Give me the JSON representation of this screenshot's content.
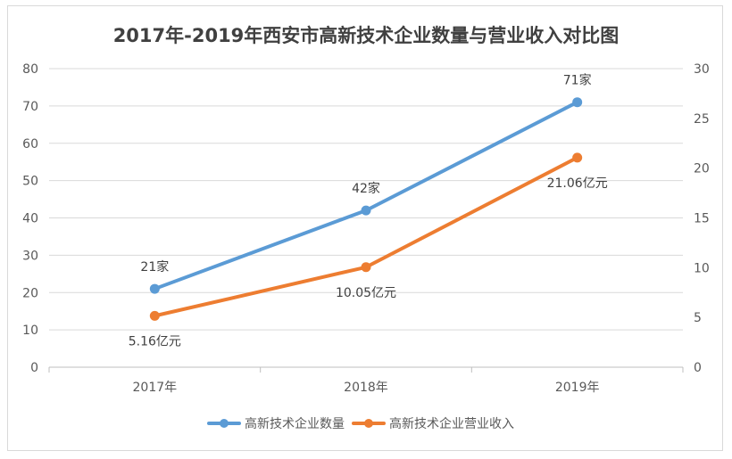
{
  "chart_data": {
    "type": "line",
    "title": "2017年-2019年西安市高新技术企业数量与营业收入对比图",
    "categories": [
      "2017年",
      "2018年",
      "2019年"
    ],
    "y_left": {
      "min": 0,
      "max": 80,
      "step": 10,
      "ticks": [
        "0",
        "10",
        "20",
        "30",
        "40",
        "50",
        "60",
        "70",
        "80"
      ]
    },
    "y_right": {
      "min": 0,
      "max": 30,
      "step": 5,
      "ticks": [
        "0",
        "5",
        "10",
        "15",
        "20",
        "25",
        "30"
      ]
    },
    "grid": true,
    "legend_position": "bottom",
    "series": [
      {
        "name": "高新技术企业数量",
        "axis": "left",
        "color": "#5b9bd5",
        "values": [
          21,
          42,
          71
        ],
        "labels": [
          "21家",
          "42家",
          "71家"
        ],
        "label_position": "above"
      },
      {
        "name": "高新技术企业营业收入",
        "axis": "right",
        "color": "#ed7d31",
        "values": [
          5.16,
          10.05,
          21.06
        ],
        "labels": [
          "5.16亿元",
          "10.05亿元",
          "21.06亿元"
        ],
        "label_position": "below"
      }
    ]
  }
}
